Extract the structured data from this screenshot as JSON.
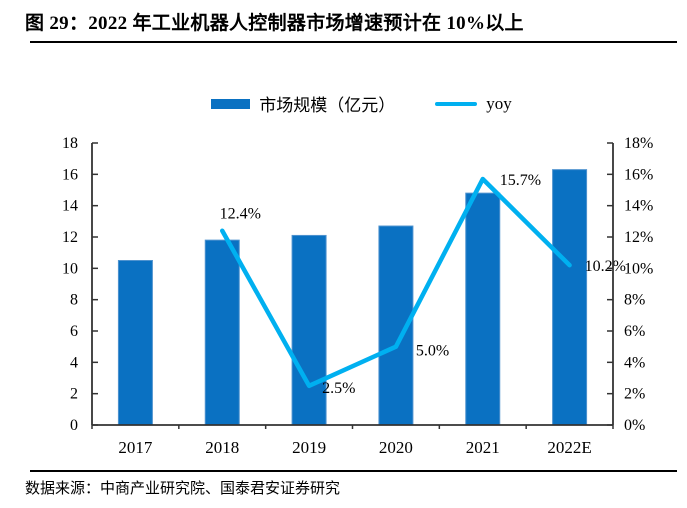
{
  "header": {
    "title": "图 29：2022 年工业机器人控制器市场增速预计在 10%以上"
  },
  "legend": [
    {
      "label": "市场规模（亿元）",
      "type": "bar",
      "color": "#0a71c2"
    },
    {
      "label": "yoy",
      "type": "line",
      "color": "#00b0f0"
    }
  ],
  "footer": {
    "source": "数据来源：中商产业研究院、国泰君安证券研究"
  },
  "colors": {
    "bar": "#0a71c2",
    "line": "#00b0f0",
    "axis": "#333333",
    "text": "#000000"
  },
  "chart_data": {
    "type": "bar",
    "subtype": "bar+line combo",
    "title": "2022 年工业机器人控制器市场增速预计在 10%以上",
    "categories": [
      "2017",
      "2018",
      "2019",
      "2020",
      "2021",
      "2022E"
    ],
    "series": [
      {
        "name": "市场规模（亿元）",
        "type": "bar",
        "axis": "left",
        "values": [
          10.5,
          11.8,
          12.1,
          12.7,
          14.8,
          16.3
        ]
      },
      {
        "name": "yoy",
        "type": "line",
        "axis": "right",
        "values": [
          null,
          12.4,
          2.5,
          5.0,
          15.7,
          10.2
        ],
        "labels": [
          null,
          "12.4%",
          "2.5%",
          "5.0%",
          "15.7%",
          "10.2%"
        ]
      }
    ],
    "left_axis": {
      "min": 0,
      "max": 18,
      "step": 2,
      "tick_labels": [
        "0",
        "2",
        "4",
        "6",
        "8",
        "10",
        "12",
        "14",
        "16",
        "18"
      ]
    },
    "right_axis": {
      "min": 0,
      "max": 18,
      "step": 2,
      "tick_labels": [
        "0%",
        "2%",
        "4%",
        "6%",
        "8%",
        "10%",
        "12%",
        "14%",
        "16%",
        "18%"
      ]
    },
    "grid": false,
    "legend_position": "top"
  }
}
